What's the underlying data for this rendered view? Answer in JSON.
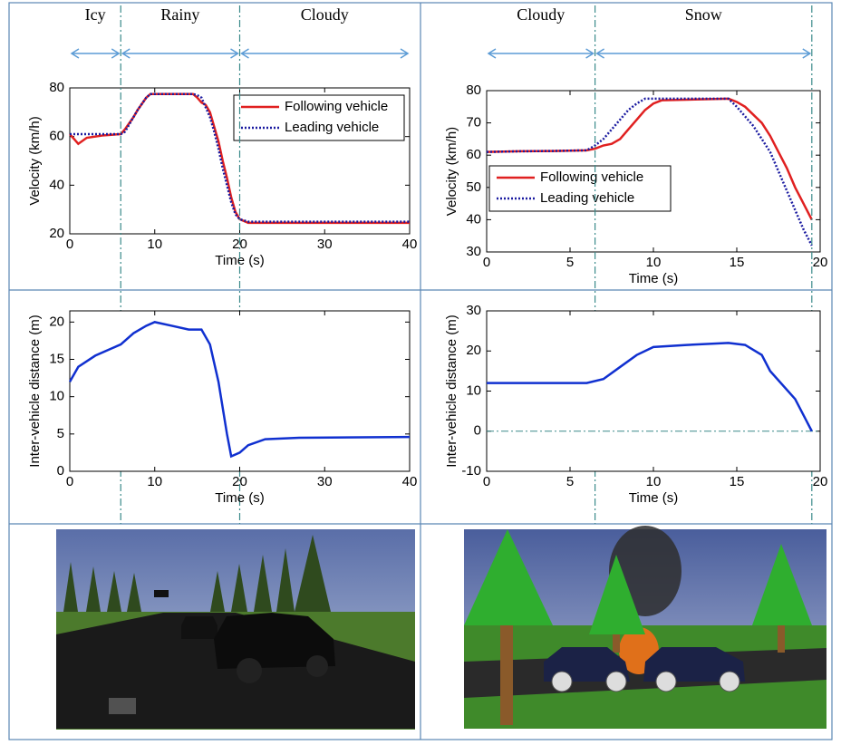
{
  "chart_data": [
    {
      "type": "line",
      "xlabel": "Time (s)",
      "ylabel": "Velocity (km/h)",
      "xlim": [
        0,
        40
      ],
      "ylim": [
        20,
        80
      ],
      "xticks": [
        0,
        10,
        20,
        30,
        40
      ],
      "yticks": [
        20,
        40,
        60,
        80
      ],
      "legend": "upper right",
      "phases": [
        {
          "label": "Icy",
          "start": 0,
          "end": 6
        },
        {
          "label": "Rainy",
          "start": 6,
          "end": 20
        },
        {
          "label": "Cloudy",
          "start": 20,
          "end": 40
        }
      ],
      "x": [
        0,
        1,
        2,
        4,
        6,
        6.5,
        7.5,
        8,
        9,
        9.5,
        12,
        14.5,
        15,
        15.5,
        16,
        16.5,
        17,
        17.5,
        18,
        18.5,
        19,
        19.5,
        20,
        21,
        25,
        30,
        40
      ],
      "series": [
        {
          "name": "Following vehicle",
          "color": "#e02020",
          "style": "solid",
          "values": [
            61,
            57,
            59.5,
            60.5,
            61,
            63,
            68,
            71,
            76,
            77.5,
            77.5,
            77.5,
            76,
            74,
            73,
            70,
            64,
            58,
            50,
            43,
            35,
            29,
            26,
            24.5,
            24.5,
            24.5,
            24.5
          ]
        },
        {
          "name": "Leading vehicle",
          "color": "#1a1aa0",
          "style": "dotted",
          "values": [
            61,
            61,
            61,
            61,
            61,
            62,
            68,
            71,
            76,
            77.5,
            77.5,
            77.5,
            77,
            76,
            72,
            68,
            62,
            55,
            47,
            40,
            33,
            28,
            26,
            25,
            25,
            25,
            25
          ]
        }
      ]
    },
    {
      "type": "line",
      "xlabel": "Time (s)",
      "ylabel": "Velocity (km/h)",
      "xlim": [
        0,
        20
      ],
      "ylim": [
        30,
        80
      ],
      "xticks": [
        0,
        5,
        10,
        15,
        20
      ],
      "yticks": [
        30,
        40,
        50,
        60,
        70,
        80
      ],
      "legend": "lower left",
      "phases": [
        {
          "label": "Cloudy",
          "start": 0,
          "end": 6.5
        },
        {
          "label": "Snow",
          "start": 6.5,
          "end": 19.5
        }
      ],
      "x": [
        0,
        2,
        4,
        6,
        6.5,
        7,
        7.5,
        8,
        8.5,
        9,
        9.5,
        10,
        10.5,
        12,
        14.5,
        15,
        15.5,
        16,
        16.5,
        17,
        17.5,
        18,
        18.5,
        19,
        19.5
      ],
      "series": [
        {
          "name": "Following vehicle",
          "color": "#e02020",
          "style": "solid",
          "values": [
            61,
            61.2,
            61.3,
            61.5,
            62,
            63,
            63.5,
            65,
            68,
            71,
            74,
            76,
            77,
            77.2,
            77.5,
            76.5,
            75,
            72.5,
            70,
            66,
            61,
            56,
            50,
            45,
            40
          ]
        },
        {
          "name": "Leading vehicle",
          "color": "#1a1aa0",
          "style": "dotted",
          "values": [
            61,
            61.2,
            61.3,
            61.5,
            63,
            65,
            68,
            71,
            74,
            76,
            77.5,
            77.5,
            77.5,
            77.5,
            77.5,
            75,
            72,
            69,
            65,
            61,
            55,
            49,
            43,
            37,
            32
          ]
        }
      ]
    },
    {
      "type": "line",
      "xlabel": "Time (s)",
      "ylabel": "Inter-vehicle distance (m)",
      "xlim": [
        0,
        40
      ],
      "ylim": [
        0,
        21.5
      ],
      "xticks": [
        0,
        10,
        20,
        30,
        40
      ],
      "yticks": [
        0,
        5,
        10,
        15,
        20
      ],
      "x": [
        0,
        1,
        3,
        5,
        6,
        7.5,
        9,
        10,
        12,
        14,
        15.5,
        16.5,
        17.5,
        18.5,
        19,
        20,
        21,
        23,
        27,
        40
      ],
      "series": [
        {
          "color": "#1030d0",
          "style": "solid",
          "values": [
            12,
            14,
            15.5,
            16.5,
            17,
            18.5,
            19.5,
            20,
            19.5,
            19,
            19,
            17,
            12,
            5,
            2,
            2.5,
            3.5,
            4.3,
            4.5,
            4.6
          ]
        }
      ]
    },
    {
      "type": "line",
      "xlabel": "Time (s)",
      "ylabel": "Inter-vehicle distance (m)",
      "xlim": [
        0,
        20
      ],
      "ylim": [
        -10,
        30
      ],
      "xticks": [
        0,
        5,
        10,
        15,
        20
      ],
      "yticks": [
        -10,
        0,
        10,
        20,
        30
      ],
      "reference_line": 0,
      "x": [
        0,
        6,
        7,
        8,
        9,
        10,
        12,
        14.5,
        15.5,
        16.5,
        17,
        18.5,
        19.5
      ],
      "series": [
        {
          "color": "#1030d0",
          "style": "solid",
          "values": [
            12,
            12,
            13,
            16,
            19,
            21,
            21.5,
            22,
            21.5,
            19,
            15,
            8,
            0
          ]
        }
      ]
    }
  ]
}
